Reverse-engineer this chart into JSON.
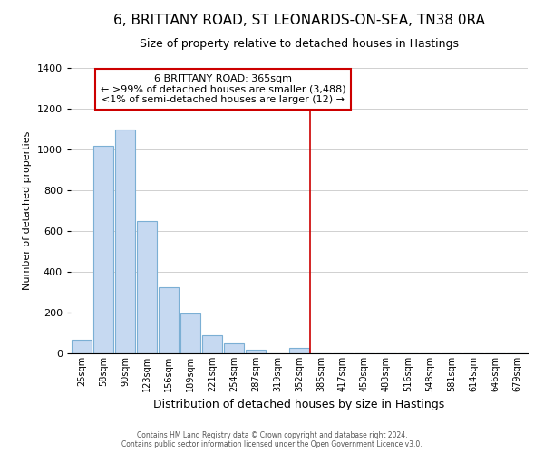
{
  "title": "6, BRITTANY ROAD, ST LEONARDS-ON-SEA, TN38 0RA",
  "subtitle": "Size of property relative to detached houses in Hastings",
  "xlabel": "Distribution of detached houses by size in Hastings",
  "ylabel": "Number of detached properties",
  "bar_labels": [
    "25sqm",
    "58sqm",
    "90sqm",
    "123sqm",
    "156sqm",
    "189sqm",
    "221sqm",
    "254sqm",
    "287sqm",
    "319sqm",
    "352sqm",
    "385sqm",
    "417sqm",
    "450sqm",
    "483sqm",
    "516sqm",
    "548sqm",
    "581sqm",
    "614sqm",
    "646sqm",
    "679sqm"
  ],
  "bar_values": [
    65,
    1020,
    1100,
    650,
    325,
    195,
    90,
    50,
    20,
    0,
    25,
    0,
    0,
    0,
    0,
    0,
    0,
    0,
    0,
    0,
    0
  ],
  "bar_color": "#c6d9f1",
  "bar_edge_color": "#7bafd4",
  "ylim": [
    0,
    1400
  ],
  "yticks": [
    0,
    200,
    400,
    600,
    800,
    1000,
    1200,
    1400
  ],
  "vline_color": "#cc0000",
  "annotation_line1": "6 BRITTANY ROAD: 365sqm",
  "annotation_line2": "← >99% of detached houses are smaller (3,488)",
  "annotation_line3": "<1% of semi-detached houses are larger (12) →",
  "annotation_box_color": "#ffffff",
  "annotation_box_edge": "#cc0000",
  "footer_line1": "Contains HM Land Registry data © Crown copyright and database right 2024.",
  "footer_line2": "Contains public sector information licensed under the Open Government Licence v3.0.",
  "background_color": "#ffffff",
  "grid_color": "#d0d0d0"
}
